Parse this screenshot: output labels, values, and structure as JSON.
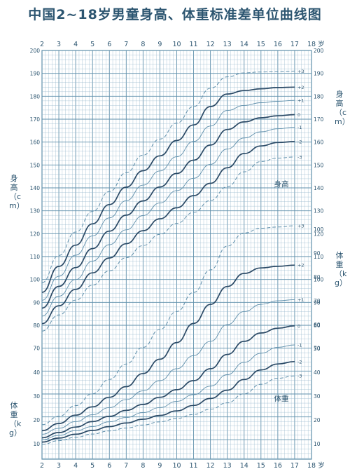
{
  "title": "中国2~18岁男童身高、体重标准差单位曲线图",
  "age_unit": "岁",
  "left_height_label": "身高（cm）",
  "left_weight_label": "体重（kg）",
  "right_height_label": "身高（cm）",
  "right_weight_label": "体重（kg）",
  "colors": {
    "grid": "#8fb3c8",
    "major": "#5f8fab",
    "curve": "#2b4a66",
    "axis_text": "#2c5570"
  },
  "chart_data": [
    {
      "type": "line",
      "name_label": "身高",
      "x_ticks": [
        2,
        3,
        4,
        5,
        6,
        7,
        8,
        9,
        10,
        11,
        12,
        13,
        14,
        15,
        16,
        17,
        18
      ],
      "y_ticks": [
        70,
        80,
        90,
        100,
        110,
        120,
        130,
        140,
        150,
        160,
        170,
        180,
        190,
        200
      ],
      "xlim": [
        2,
        18
      ],
      "ylim": [
        65,
        200
      ],
      "x": [
        2,
        3,
        4,
        5,
        6,
        7,
        8,
        9,
        10,
        11,
        12,
        13,
        14,
        15,
        16,
        17
      ],
      "series": [
        {
          "name": "+3",
          "values": [
            98.6,
            110.5,
            120.7,
            129.7,
            138.4,
            146.6,
            154.3,
            161.3,
            168.3,
            175.5,
            183.5,
            188.5,
            190.2,
            190.6,
            190.8,
            191.0
          ]
        },
        {
          "name": "+2",
          "values": [
            94.4,
            105.7,
            115.0,
            124.3,
            132.7,
            140.3,
            147.5,
            154.0,
            160.7,
            167.5,
            175.5,
            181.0,
            182.5,
            183.3,
            183.8,
            184.0
          ]
        },
        {
          "name": "+1",
          "values": [
            90.9,
            101.4,
            110.6,
            119.0,
            126.9,
            134.4,
            141.2,
            147.4,
            153.6,
            160.3,
            167.0,
            173.8,
            176.0,
            177.2,
            177.8,
            178.2
          ]
        },
        {
          "name": "0",
          "values": [
            87.5,
            97.0,
            105.2,
            113.5,
            121.1,
            128.1,
            134.3,
            140.4,
            146.3,
            152.1,
            158.7,
            165.5,
            168.8,
            170.6,
            171.5,
            172.0
          ]
        },
        {
          "name": "-1",
          "values": [
            84.0,
            92.7,
            100.0,
            108.0,
            115.2,
            121.7,
            127.9,
            133.4,
            138.8,
            144.2,
            150.3,
            157.0,
            161.8,
            164.5,
            165.8,
            166.5
          ]
        },
        {
          "name": "-2",
          "values": [
            80.7,
            88.5,
            95.7,
            102.9,
            109.4,
            115.6,
            121.3,
            126.5,
            131.3,
            136.6,
            142.0,
            148.8,
            155.0,
            158.3,
            159.8,
            160.2
          ]
        },
        {
          "name": "-3",
          "values": [
            77.5,
            84.5,
            91.0,
            97.5,
            103.8,
            109.5,
            114.8,
            119.7,
            124.5,
            129.3,
            134.5,
            140.5,
            147.0,
            151.5,
            153.0,
            153.5
          ]
        }
      ]
    },
    {
      "type": "line",
      "name_label": "体重",
      "x_ticks": [
        2,
        3,
        4,
        5,
        6,
        7,
        8,
        9,
        10,
        11,
        12,
        13,
        14,
        15,
        16,
        17,
        18
      ],
      "y_ticks": [
        10,
        20,
        30,
        40,
        50,
        60,
        70,
        80,
        90,
        100
      ],
      "xlim": [
        2,
        18
      ],
      "ylim": [
        5,
        108
      ],
      "x": [
        2,
        3,
        4,
        5,
        6,
        7,
        8,
        9,
        10,
        11,
        12,
        13,
        14,
        15,
        16,
        17
      ],
      "series": [
        {
          "name": "+3",
          "values": [
            18.0,
            21.5,
            26.0,
            31.0,
            37.0,
            43.5,
            50.5,
            58.0,
            65.5,
            73.5,
            83.0,
            93.0,
            98.5,
            100.5,
            101.0,
            101.5
          ]
        },
        {
          "name": "+2",
          "values": [
            15.5,
            18.5,
            22.0,
            25.5,
            29.5,
            34.0,
            39.5,
            45.5,
            52.5,
            60.5,
            68.5,
            76.0,
            81.5,
            83.8,
            84.5,
            85.0
          ]
        },
        {
          "name": "+1",
          "values": [
            14.0,
            16.5,
            19.3,
            22.2,
            25.2,
            28.5,
            32.2,
            36.5,
            41.5,
            47.0,
            53.0,
            60.0,
            65.5,
            68.5,
            70.0,
            70.5
          ]
        },
        {
          "name": "0",
          "values": [
            12.5,
            14.7,
            17.0,
            19.3,
            21.5,
            24.0,
            26.5,
            29.5,
            32.7,
            36.5,
            41.5,
            47.5,
            53.0,
            56.5,
            58.5,
            59.5
          ]
        },
        {
          "name": "-1",
          "values": [
            11.7,
            13.5,
            15.5,
            17.2,
            19.2,
            21.0,
            23.1,
            25.2,
            27.8,
            30.6,
            34.2,
            39.0,
            44.2,
            48.0,
            50.5,
            51.5
          ]
        },
        {
          "name": "-2",
          "values": [
            10.7,
            12.4,
            14.0,
            15.6,
            17.2,
            18.7,
            20.3,
            21.9,
            23.8,
            26.1,
            29.0,
            32.5,
            37.0,
            41.0,
            43.5,
            44.5
          ]
        },
        {
          "name": "-3",
          "values": [
            9.7,
            11.3,
            12.7,
            14.1,
            15.4,
            16.6,
            17.9,
            19.2,
            20.6,
            22.3,
            24.5,
            27.2,
            31.0,
            35.0,
            37.5,
            38.5
          ]
        }
      ]
    }
  ]
}
